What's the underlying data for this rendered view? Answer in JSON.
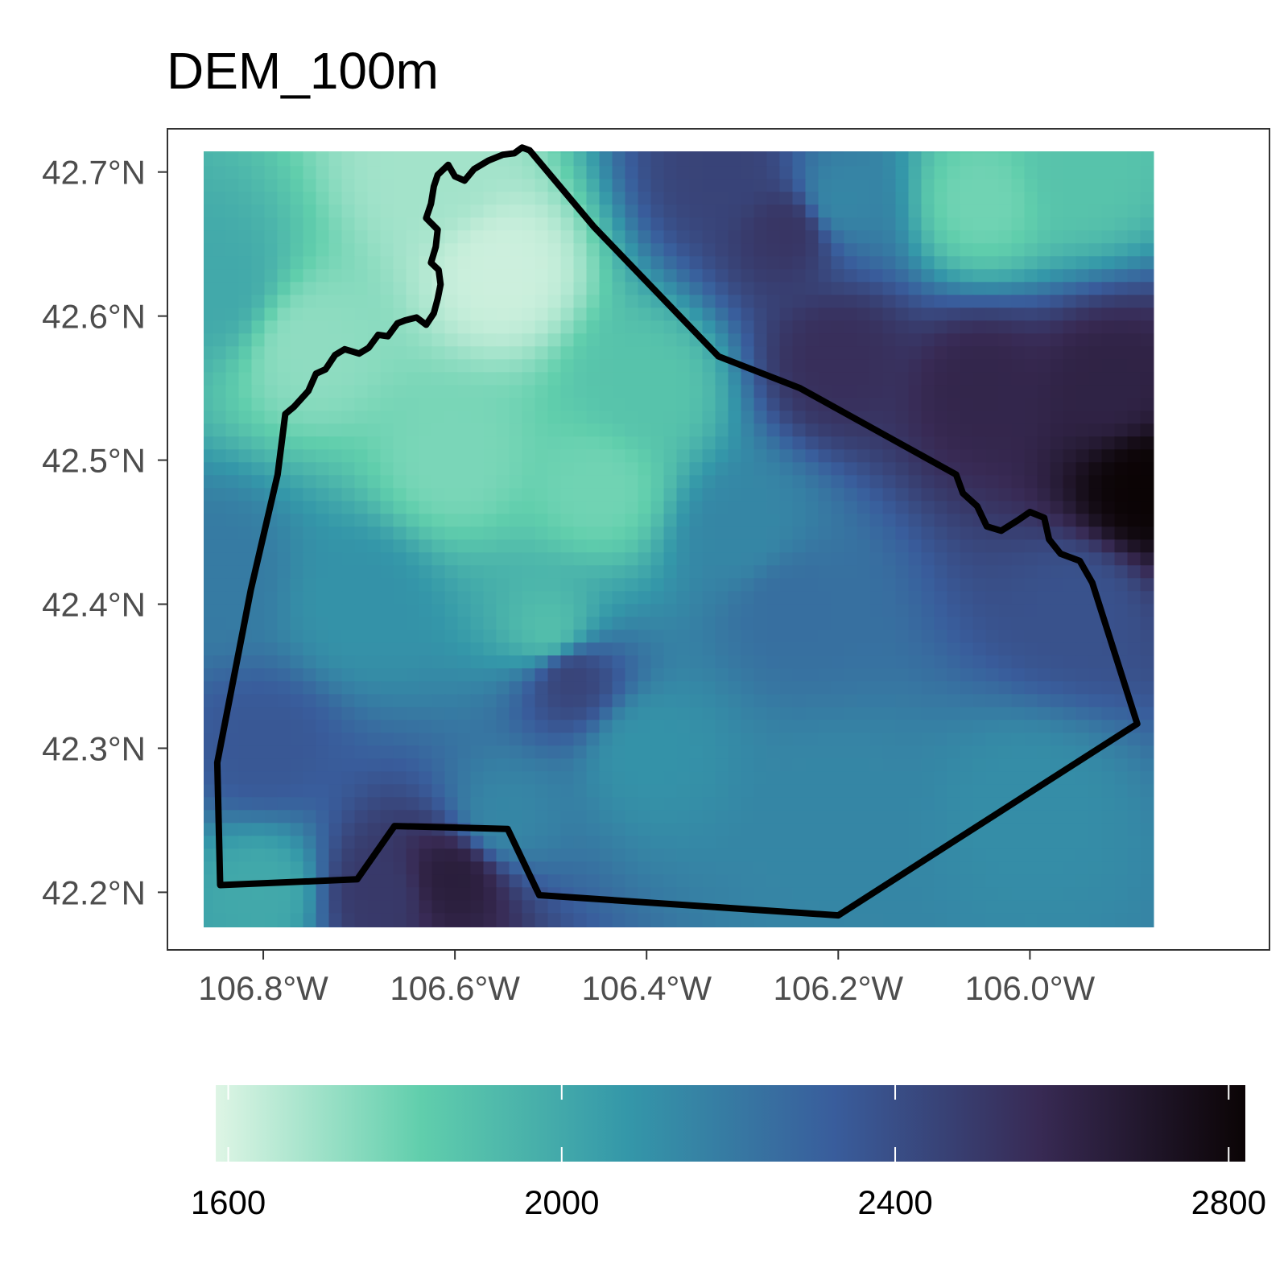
{
  "title": "DEM_100m",
  "map": {
    "lon_range": [
      -106.9,
      -105.75
    ],
    "lat_range": [
      42.16,
      42.73
    ],
    "raster_lon_extent": [
      -106.866,
      -105.874
    ],
    "raster_lat_extent": [
      42.175,
      42.722
    ],
    "lat_ticks": [
      {
        "value": 42.7,
        "label": "42.7°N"
      },
      {
        "value": 42.6,
        "label": "42.6°N"
      },
      {
        "value": 42.5,
        "label": "42.5°N"
      },
      {
        "value": 42.4,
        "label": "42.4°N"
      },
      {
        "value": 42.3,
        "label": "42.3°N"
      },
      {
        "value": 42.2,
        "label": "42.2°N"
      }
    ],
    "lon_ticks": [
      {
        "value": -106.8,
        "label": "106.8°W"
      },
      {
        "value": -106.6,
        "label": "106.6°W"
      },
      {
        "value": -106.4,
        "label": "106.4°W"
      },
      {
        "value": -106.2,
        "label": "106.2°W"
      },
      {
        "value": -106.0,
        "label": "106.0°W"
      }
    ],
    "boundary": [
      [
        -106.522,
        42.715
      ],
      [
        -106.455,
        42.662
      ],
      [
        -106.325,
        42.572
      ],
      [
        -106.24,
        42.55
      ],
      [
        -106.077,
        42.49
      ],
      [
        -106.07,
        42.477
      ],
      [
        -106.055,
        42.468
      ],
      [
        -106.045,
        42.454
      ],
      [
        -106.03,
        42.451
      ],
      [
        -106.013,
        42.458
      ],
      [
        -106.0,
        42.464
      ],
      [
        -105.985,
        42.46
      ],
      [
        -105.98,
        42.445
      ],
      [
        -105.968,
        42.435
      ],
      [
        -105.948,
        42.43
      ],
      [
        -105.935,
        42.415
      ],
      [
        -105.888,
        42.317
      ],
      [
        -106.2,
        42.184
      ],
      [
        -106.512,
        42.198
      ],
      [
        -106.545,
        42.244
      ],
      [
        -106.663,
        42.246
      ],
      [
        -106.702,
        42.209
      ],
      [
        -106.845,
        42.205
      ],
      [
        -106.848,
        42.29
      ],
      [
        -106.813,
        42.41
      ],
      [
        -106.785,
        42.49
      ],
      [
        -106.777,
        42.532
      ],
      [
        -106.768,
        42.537
      ],
      [
        -106.753,
        42.548
      ],
      [
        -106.745,
        42.56
      ],
      [
        -106.735,
        42.563
      ],
      [
        -106.725,
        42.573
      ],
      [
        -106.715,
        42.577
      ],
      [
        -106.7,
        42.574
      ],
      [
        -106.69,
        42.578
      ],
      [
        -106.68,
        42.587
      ],
      [
        -106.67,
        42.586
      ],
      [
        -106.66,
        42.595
      ],
      [
        -106.652,
        42.597
      ],
      [
        -106.64,
        42.599
      ],
      [
        -106.63,
        42.594
      ],
      [
        -106.622,
        42.602
      ],
      [
        -106.618,
        42.612
      ],
      [
        -106.615,
        42.622
      ],
      [
        -106.617,
        42.632
      ],
      [
        -106.625,
        42.637
      ],
      [
        -106.62,
        42.648
      ],
      [
        -106.618,
        42.66
      ],
      [
        -106.63,
        42.668
      ],
      [
        -106.625,
        42.678
      ],
      [
        -106.622,
        42.69
      ],
      [
        -106.618,
        42.698
      ],
      [
        -106.607,
        42.705
      ],
      [
        -106.6,
        42.697
      ],
      [
        -106.59,
        42.694
      ],
      [
        -106.58,
        42.702
      ],
      [
        -106.565,
        42.708
      ],
      [
        -106.55,
        42.712
      ],
      [
        -106.538,
        42.713
      ],
      [
        -106.53,
        42.717
      ],
      [
        -106.522,
        42.715
      ]
    ]
  },
  "legend": {
    "value_range": [
      1585,
      2820
    ],
    "ticks": [
      {
        "value": 1600,
        "label": "1600"
      },
      {
        "value": 2000,
        "label": "2000"
      },
      {
        "value": 2400,
        "label": "2400"
      },
      {
        "value": 2800,
        "label": "2800"
      }
    ],
    "color_stops": [
      {
        "offset": 0,
        "color": "#def5e5"
      },
      {
        "offset": 0.2,
        "color": "#60ceac"
      },
      {
        "offset": 0.4,
        "color": "#3497a9"
      },
      {
        "offset": 0.6,
        "color": "#395d9c"
      },
      {
        "offset": 0.8,
        "color": "#382a54"
      },
      {
        "offset": 1,
        "color": "#0b0405"
      }
    ]
  },
  "elevation_features": [
    {
      "lon": -106.55,
      "lat": 42.63,
      "elev": 1620
    },
    {
      "lon": -106.62,
      "lat": 42.7,
      "elev": 1700
    },
    {
      "lon": -106.75,
      "lat": 42.58,
      "elev": 1740
    },
    {
      "lon": -106.45,
      "lat": 42.48,
      "elev": 1800
    },
    {
      "lon": -106.6,
      "lat": 42.5,
      "elev": 1780
    },
    {
      "lon": -106.5,
      "lat": 42.38,
      "elev": 1900
    },
    {
      "lon": -106.4,
      "lat": 42.55,
      "elev": 1880
    },
    {
      "lon": -106.05,
      "lat": 42.68,
      "elev": 1800
    },
    {
      "lon": -105.95,
      "lat": 42.7,
      "elev": 1880
    },
    {
      "lon": -106.2,
      "lat": 42.68,
      "elev": 2150
    },
    {
      "lon": -106.25,
      "lat": 42.66,
      "elev": 2520
    },
    {
      "lon": -106.32,
      "lat": 42.7,
      "elev": 2450
    },
    {
      "lon": -106.2,
      "lat": 42.57,
      "elev": 2550
    },
    {
      "lon": -106.05,
      "lat": 42.55,
      "elev": 2600
    },
    {
      "lon": -105.92,
      "lat": 42.55,
      "elev": 2620
    },
    {
      "lon": -105.88,
      "lat": 42.48,
      "elev": 2820
    },
    {
      "lon": -105.95,
      "lat": 42.4,
      "elev": 2380
    },
    {
      "lon": -106.25,
      "lat": 42.4,
      "elev": 2250
    },
    {
      "lon": -106.4,
      "lat": 42.3,
      "elev": 2100
    },
    {
      "lon": -106.2,
      "lat": 42.25,
      "elev": 2150
    },
    {
      "lon": -106.0,
      "lat": 42.26,
      "elev": 2120
    },
    {
      "lon": -106.55,
      "lat": 42.25,
      "elev": 2150
    },
    {
      "lon": -106.6,
      "lat": 42.21,
      "elev": 2650
    },
    {
      "lon": -106.68,
      "lat": 42.2,
      "elev": 2500
    },
    {
      "lon": -106.48,
      "lat": 42.35,
      "elev": 2450
    },
    {
      "lon": -106.8,
      "lat": 42.3,
      "elev": 2350
    },
    {
      "lon": -106.85,
      "lat": 42.42,
      "elev": 2200
    },
    {
      "lon": -106.85,
      "lat": 42.62,
      "elev": 2000
    },
    {
      "lon": -106.7,
      "lat": 42.4,
      "elev": 2100
    },
    {
      "lon": -106.8,
      "lat": 42.2,
      "elev": 2000
    },
    {
      "lon": -106.3,
      "lat": 42.45,
      "elev": 2150
    }
  ]
}
